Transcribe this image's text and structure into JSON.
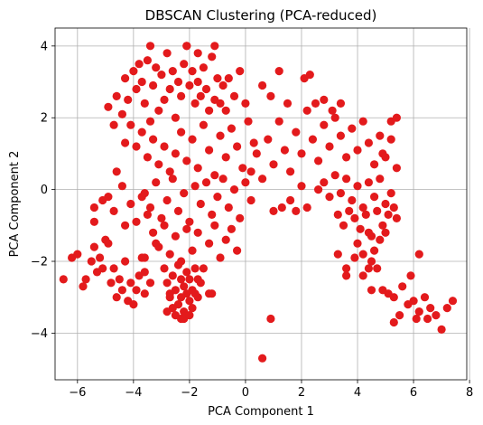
{
  "chart_data": {
    "type": "scatter",
    "title": "DBSCAN Clustering (PCA-reduced)",
    "xlabel": "PCA Component 1",
    "ylabel": "PCA Component 2",
    "xlim": [
      -6.8,
      7.9
    ],
    "ylim": [
      -5.3,
      4.5
    ],
    "xticks": [
      -6,
      -4,
      -2,
      0,
      2,
      4,
      6,
      8
    ],
    "yticks": [
      -4,
      -2,
      0,
      2,
      4
    ],
    "grid": true,
    "point_color": "#e31a1c",
    "series": [
      {
        "points": [
          [
            -6.5,
            -2.5
          ],
          [
            -6.2,
            -1.9
          ],
          [
            -6.0,
            -1.8
          ],
          [
            -5.8,
            -2.7
          ],
          [
            -5.7,
            -2.5
          ],
          [
            -5.5,
            -2.0
          ],
          [
            -5.4,
            -1.6
          ],
          [
            -5.3,
            -2.3
          ],
          [
            -5.2,
            -1.9
          ],
          [
            -5.1,
            -2.2
          ],
          [
            -5.0,
            -1.4
          ],
          [
            -4.9,
            -1.5
          ],
          [
            -4.8,
            -2.6
          ],
          [
            -4.7,
            -2.2
          ],
          [
            -4.6,
            -3.0
          ],
          [
            -4.5,
            -2.5
          ],
          [
            -4.4,
            -2.8
          ],
          [
            -4.3,
            -2.0
          ],
          [
            -4.2,
            -3.1
          ],
          [
            -4.1,
            -2.6
          ],
          [
            -4.0,
            -3.2
          ],
          [
            -3.9,
            -2.8
          ],
          [
            -3.8,
            -2.4
          ],
          [
            -3.7,
            -1.9
          ],
          [
            -3.6,
            -2.3
          ],
          [
            -5.4,
            -0.5
          ],
          [
            -5.4,
            -0.9
          ],
          [
            -5.1,
            -0.3
          ],
          [
            -4.9,
            -0.2
          ],
          [
            -4.7,
            -0.6
          ],
          [
            -4.4,
            0.1
          ],
          [
            -4.1,
            -0.4
          ],
          [
            -3.9,
            -0.9
          ],
          [
            -3.7,
            -0.2
          ],
          [
            -3.5,
            -0.7
          ],
          [
            -4.3,
            -1.0
          ],
          [
            -4.6,
            0.5
          ],
          [
            -4.9,
            2.3
          ],
          [
            -4.7,
            1.8
          ],
          [
            -4.6,
            2.6
          ],
          [
            -4.4,
            2.1
          ],
          [
            -4.3,
            3.1
          ],
          [
            -4.2,
            2.5
          ],
          [
            -4.0,
            3.3
          ],
          [
            -3.9,
            2.8
          ],
          [
            -3.8,
            3.5
          ],
          [
            -3.7,
            3.0
          ],
          [
            -3.6,
            2.4
          ],
          [
            -3.5,
            3.6
          ],
          [
            -3.4,
            1.9
          ],
          [
            -3.3,
            2.9
          ],
          [
            -3.2,
            3.4
          ],
          [
            -3.1,
            2.2
          ],
          [
            -3.0,
            3.2
          ],
          [
            -2.9,
            2.5
          ],
          [
            -2.8,
            3.8
          ],
          [
            -2.7,
            2.8
          ],
          [
            -2.6,
            3.3
          ],
          [
            -2.5,
            2.0
          ],
          [
            -2.4,
            3.0
          ],
          [
            -2.3,
            2.6
          ],
          [
            -2.2,
            3.5
          ],
          [
            -2.1,
            4.0
          ],
          [
            -2.0,
            2.9
          ],
          [
            -1.9,
            3.3
          ],
          [
            -1.8,
            2.4
          ],
          [
            -1.7,
            3.0
          ],
          [
            -1.6,
            2.6
          ],
          [
            -1.5,
            3.4
          ],
          [
            -1.4,
            2.8
          ],
          [
            -1.3,
            2.2
          ],
          [
            -1.2,
            3.7
          ],
          [
            -1.1,
            2.5
          ],
          [
            -1.0,
            3.1
          ],
          [
            -0.9,
            2.4
          ],
          [
            -0.8,
            2.9
          ],
          [
            -0.7,
            2.2
          ],
          [
            -3.4,
            4.0
          ],
          [
            -2.1,
            4.0
          ],
          [
            -1.7,
            3.8
          ],
          [
            -1.1,
            4.0
          ],
          [
            -0.6,
            3.1
          ],
          [
            -0.4,
            2.6
          ],
          [
            -0.2,
            3.3
          ],
          [
            0.0,
            2.4
          ],
          [
            -4.3,
            1.3
          ],
          [
            -4.1,
            1.8
          ],
          [
            -3.9,
            1.2
          ],
          [
            -3.7,
            1.6
          ],
          [
            -3.5,
            0.9
          ],
          [
            -3.3,
            1.4
          ],
          [
            -3.1,
            0.7
          ],
          [
            -2.9,
            1.2
          ],
          [
            -2.7,
            0.5
          ],
          [
            -2.5,
            1.0
          ],
          [
            -2.3,
            1.6
          ],
          [
            -2.1,
            0.8
          ],
          [
            -1.9,
            1.4
          ],
          [
            -1.7,
            0.6
          ],
          [
            -1.5,
            1.8
          ],
          [
            -1.3,
            1.1
          ],
          [
            -1.1,
            0.4
          ],
          [
            -0.9,
            1.5
          ],
          [
            -0.7,
            0.9
          ],
          [
            -0.5,
            1.7
          ],
          [
            -0.3,
            1.2
          ],
          [
            -0.1,
            0.6
          ],
          [
            0.1,
            1.9
          ],
          [
            0.3,
            1.3
          ],
          [
            -3.6,
            -0.1
          ],
          [
            -3.4,
            -0.5
          ],
          [
            -3.2,
            0.2
          ],
          [
            -3.0,
            -0.8
          ],
          [
            -2.8,
            -0.3
          ],
          [
            -2.6,
            0.3
          ],
          [
            -2.4,
            -0.6
          ],
          [
            -2.2,
            -0.1
          ],
          [
            -2.0,
            -0.9
          ],
          [
            -1.8,
            0.1
          ],
          [
            -1.6,
            -0.4
          ],
          [
            -1.4,
            0.2
          ],
          [
            -1.2,
            -0.7
          ],
          [
            -1.0,
            -0.2
          ],
          [
            -0.8,
            0.3
          ],
          [
            -0.6,
            -0.5
          ],
          [
            -0.4,
            0.0
          ],
          [
            -0.2,
            -0.8
          ],
          [
            0.0,
            0.2
          ],
          [
            0.2,
            -0.3
          ],
          [
            -3.3,
            -1.2
          ],
          [
            -3.1,
            -1.6
          ],
          [
            -2.9,
            -1.0
          ],
          [
            -2.7,
            -1.8
          ],
          [
            -2.5,
            -1.3
          ],
          [
            -2.3,
            -2.0
          ],
          [
            -2.1,
            -1.1
          ],
          [
            -1.9,
            -1.7
          ],
          [
            -1.7,
            -1.2
          ],
          [
            -1.5,
            -2.2
          ],
          [
            -1.3,
            -1.5
          ],
          [
            -1.1,
            -1.0
          ],
          [
            -0.9,
            -1.9
          ],
          [
            -0.7,
            -1.4
          ],
          [
            -0.5,
            -1.1
          ],
          [
            -0.3,
            -1.7
          ],
          [
            -3.6,
            -1.9
          ],
          [
            -3.4,
            -2.6
          ],
          [
            -3.2,
            -1.5
          ],
          [
            -1.6,
            -2.6
          ],
          [
            -1.3,
            -2.9
          ],
          [
            -2.9,
            -2.2
          ],
          [
            -2.8,
            -2.6
          ],
          [
            -2.7,
            -3.0
          ],
          [
            -2.6,
            -2.4
          ],
          [
            -2.5,
            -2.8
          ],
          [
            -2.4,
            -3.2
          ],
          [
            -2.4,
            -2.1
          ],
          [
            -2.3,
            -2.5
          ],
          [
            -2.3,
            -3.0
          ],
          [
            -2.2,
            -2.7
          ],
          [
            -2.2,
            -3.4
          ],
          [
            -2.1,
            -2.3
          ],
          [
            -2.1,
            -2.9
          ],
          [
            -2.0,
            -3.1
          ],
          [
            -2.0,
            -2.5
          ],
          [
            -1.9,
            -2.8
          ],
          [
            -1.9,
            -3.3
          ],
          [
            -1.8,
            -2.2
          ],
          [
            -1.8,
            -2.9
          ],
          [
            -1.7,
            -2.5
          ],
          [
            -1.7,
            -3.0
          ],
          [
            -2.6,
            -3.3
          ],
          [
            -2.5,
            -3.5
          ],
          [
            -2.2,
            -3.6
          ],
          [
            -2.8,
            -3.4
          ],
          [
            -2.3,
            -3.6
          ],
          [
            -2.0,
            -3.5
          ],
          [
            -2.7,
            -2.9
          ],
          [
            -1.2,
            -2.9
          ],
          [
            -3.6,
            -2.9
          ],
          [
            0.2,
            0.5
          ],
          [
            0.4,
            1.0
          ],
          [
            0.6,
            0.3
          ],
          [
            0.8,
            1.4
          ],
          [
            1.0,
            0.7
          ],
          [
            1.2,
            1.9
          ],
          [
            1.4,
            1.1
          ],
          [
            1.6,
            0.5
          ],
          [
            1.8,
            1.6
          ],
          [
            2.0,
            1.0
          ],
          [
            2.2,
            2.2
          ],
          [
            2.4,
            1.4
          ],
          [
            2.6,
            0.8
          ],
          [
            2.8,
            1.8
          ],
          [
            3.0,
            1.2
          ],
          [
            3.2,
            2.0
          ],
          [
            3.4,
            1.5
          ],
          [
            3.6,
            0.9
          ],
          [
            3.8,
            1.7
          ],
          [
            4.0,
            1.1
          ],
          [
            4.2,
            1.9
          ],
          [
            4.4,
            1.3
          ],
          [
            4.6,
            0.7
          ],
          [
            4.8,
            1.5
          ],
          [
            5.0,
            0.9
          ],
          [
            5.2,
            1.4
          ],
          [
            5.4,
            0.6
          ],
          [
            5.2,
            1.9
          ],
          [
            4.9,
            1.0
          ],
          [
            0.6,
            2.9
          ],
          [
            0.9,
            2.6
          ],
          [
            1.2,
            3.3
          ],
          [
            1.5,
            2.4
          ],
          [
            2.1,
            3.1
          ],
          [
            2.3,
            3.2
          ],
          [
            2.5,
            2.4
          ],
          [
            2.8,
            2.5
          ],
          [
            3.1,
            2.2
          ],
          [
            3.4,
            2.4
          ],
          [
            5.4,
            2.0
          ],
          [
            2.6,
            0.0
          ],
          [
            2.8,
            0.2
          ],
          [
            3.0,
            -0.2
          ],
          [
            3.2,
            0.4
          ],
          [
            3.4,
            -0.1
          ],
          [
            3.6,
            0.3
          ],
          [
            3.8,
            -0.3
          ],
          [
            4.0,
            0.1
          ],
          [
            4.2,
            -0.5
          ],
          [
            4.4,
            0.2
          ],
          [
            4.6,
            -0.2
          ],
          [
            4.8,
            0.3
          ],
          [
            5.0,
            -0.4
          ],
          [
            5.2,
            -0.1
          ],
          [
            3.9,
            -0.8
          ],
          [
            4.1,
            -1.1
          ],
          [
            4.3,
            -0.7
          ],
          [
            4.5,
            -1.3
          ],
          [
            4.7,
            -0.6
          ],
          [
            4.9,
            -1.0
          ],
          [
            5.1,
            -0.7
          ],
          [
            5.3,
            -0.5
          ],
          [
            4.0,
            -1.5
          ],
          [
            4.2,
            -1.8
          ],
          [
            4.4,
            -1.2
          ],
          [
            4.6,
            -1.7
          ],
          [
            3.7,
            -0.6
          ],
          [
            3.5,
            -1.0
          ],
          [
            3.3,
            -0.7
          ],
          [
            4.8,
            -1.4
          ],
          [
            5.0,
            -1.2
          ],
          [
            5.4,
            -0.8
          ],
          [
            3.3,
            -1.8
          ],
          [
            3.6,
            -2.2
          ],
          [
            3.9,
            -1.9
          ],
          [
            4.2,
            -2.4
          ],
          [
            4.5,
            -2.0
          ],
          [
            4.7,
            -2.2
          ],
          [
            3.6,
            -2.4
          ],
          [
            4.4,
            -2.2
          ],
          [
            1.6,
            -0.3
          ],
          [
            2.0,
            0.1
          ],
          [
            1.8,
            -0.6
          ],
          [
            2.2,
            -0.5
          ],
          [
            1.0,
            -0.6
          ],
          [
            1.3,
            -0.5
          ],
          [
            4.5,
            -2.8
          ],
          [
            4.9,
            -2.8
          ],
          [
            5.1,
            -2.9
          ],
          [
            5.3,
            -3.0
          ],
          [
            5.5,
            -3.5
          ],
          [
            5.6,
            -2.7
          ],
          [
            5.8,
            -3.2
          ],
          [
            6.0,
            -3.1
          ],
          [
            6.2,
            -3.4
          ],
          [
            6.4,
            -3.0
          ],
          [
            6.6,
            -3.3
          ],
          [
            6.8,
            -3.5
          ],
          [
            7.0,
            -3.9
          ],
          [
            7.2,
            -3.3
          ],
          [
            7.4,
            -3.1
          ],
          [
            6.1,
            -3.6
          ],
          [
            5.3,
            -3.7
          ],
          [
            6.5,
            -3.6
          ],
          [
            5.9,
            -2.4
          ],
          [
            6.2,
            -1.8
          ],
          [
            0.9,
            -3.6
          ],
          [
            0.6,
            -4.7
          ]
        ]
      }
    ]
  }
}
